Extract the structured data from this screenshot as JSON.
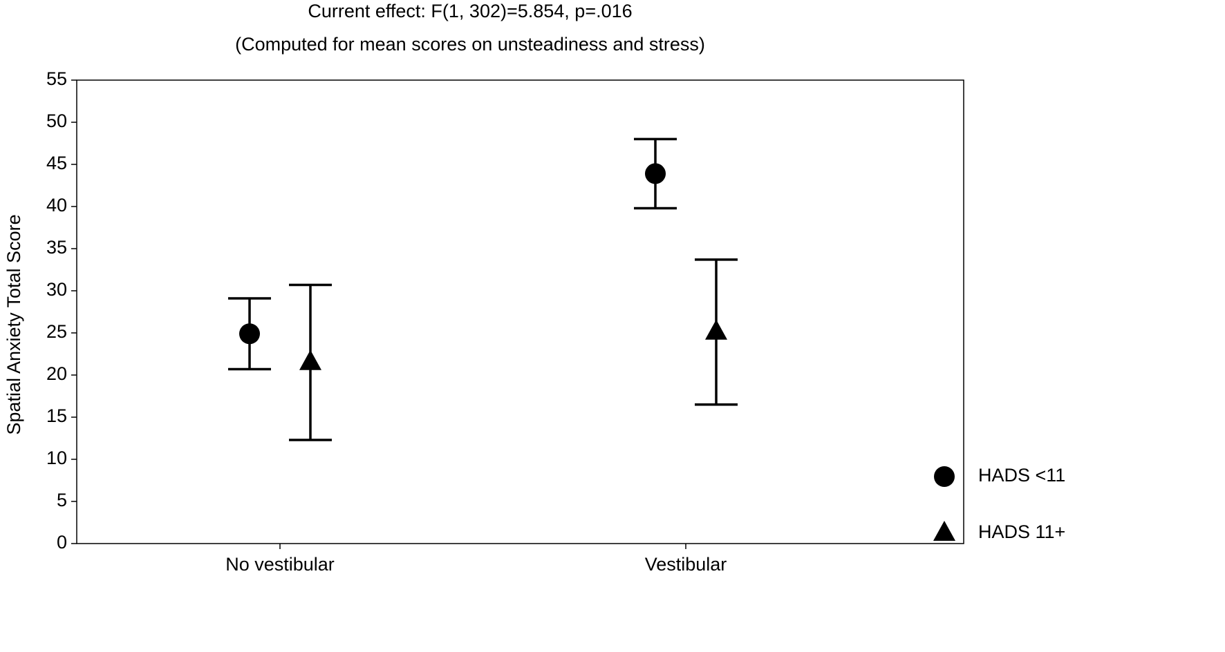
{
  "chart_data": {
    "type": "errorbar",
    "title": "Current effect: F(1, 302)=5.854, p=.016",
    "subtitle": "(Computed for mean scores on unsteadiness and stress)",
    "y_label": "Spatial Anxiety Total Score",
    "categories": [
      "No vestibular",
      "Vestibular"
    ],
    "series": [
      {
        "name": "HADS <11",
        "color": "#000000",
        "marker": "circle",
        "values": [
          24.9,
          43.9
        ],
        "errors": [
          4.2,
          4.1
        ]
      },
      {
        "name": "HADS 11+",
        "color": "#000000",
        "marker": "triangle",
        "values": [
          21.5,
          25.1
        ],
        "errors": [
          9.2,
          8.6
        ]
      }
    ],
    "ylim": [
      0,
      55
    ],
    "yticks": [
      0,
      5,
      10,
      15,
      20,
      25,
      30,
      35,
      40,
      45,
      50,
      55
    ],
    "legend": "right"
  }
}
